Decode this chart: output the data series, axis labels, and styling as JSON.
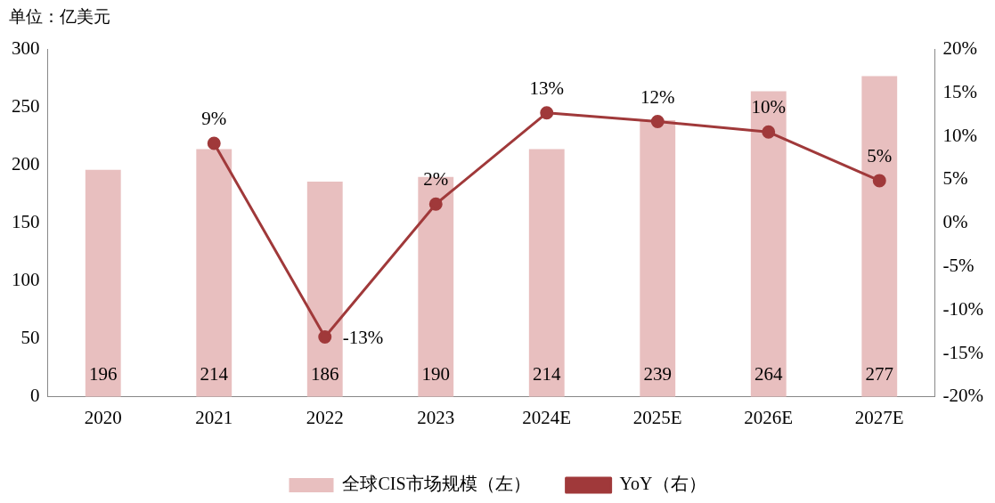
{
  "chart_data": {
    "type": "bar",
    "annotations": [
      "单位：亿美元"
    ],
    "categories": [
      "2020",
      "2021",
      "2022",
      "2023",
      "2024E",
      "2025E",
      "2026E",
      "2027E"
    ],
    "series": [
      {
        "name": "全球CIS市场规模（左）",
        "color": "#e8bfbf",
        "values": [
          196,
          214,
          186,
          190,
          214,
          239,
          264,
          277
        ]
      },
      {
        "name": "YoY（右）",
        "type": "line",
        "axis": "y2",
        "color": "#a0393a",
        "marker": "circle",
        "values": [
          null,
          9.2,
          -13.1,
          2.2,
          12.7,
          11.7,
          10.5,
          4.9
        ],
        "value_labels": [
          null,
          "9%",
          "-13%",
          "2%",
          "13%",
          "12%",
          "10%",
          "5%"
        ]
      }
    ],
    "data_labels": true,
    "ylim": [
      0,
      300
    ],
    "yticks": [
      0,
      50,
      100,
      150,
      200,
      250,
      300
    ],
    "y2lim": [
      -20,
      20
    ],
    "y2ticks": [
      {
        "value": -20,
        "label": "-20%"
      },
      {
        "value": -15,
        "label": "-15%"
      },
      {
        "value": -10,
        "label": "-10%"
      },
      {
        "value": -5,
        "label": "-5%"
      },
      {
        "value": 0,
        "label": "0%"
      },
      {
        "value": 5,
        "label": "5%"
      },
      {
        "value": 10,
        "label": "10%"
      },
      {
        "value": 15,
        "label": "15%"
      },
      {
        "value": 20,
        "label": "20%"
      }
    ],
    "grid": false,
    "legend": "bottom"
  }
}
